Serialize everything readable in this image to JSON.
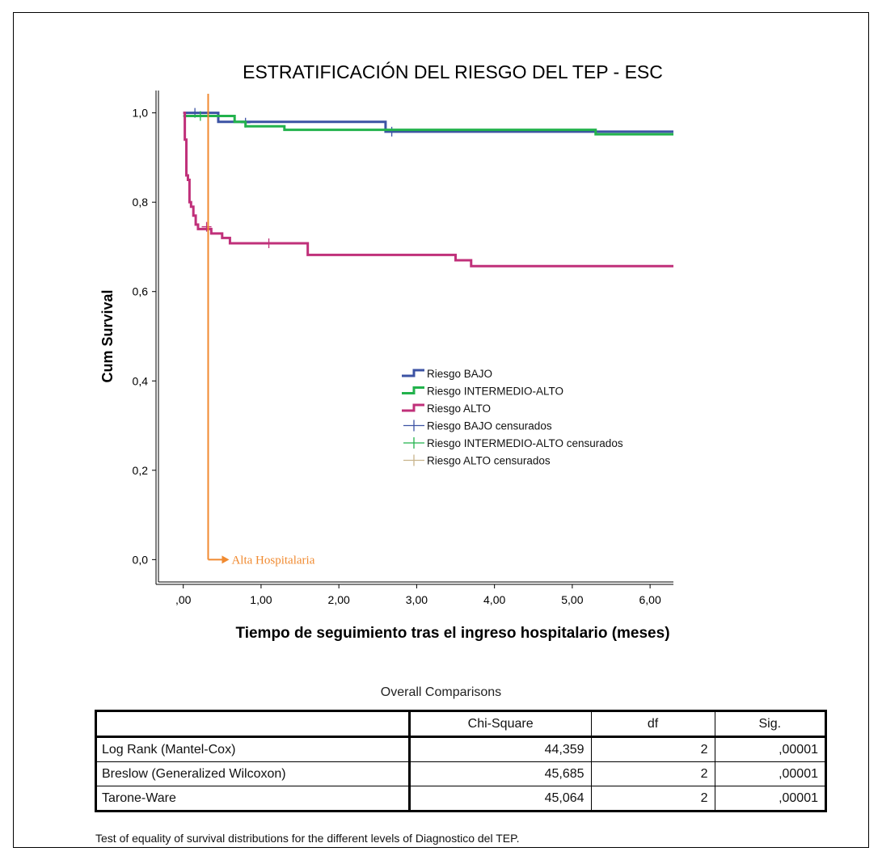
{
  "chart_data": {
    "type": "line",
    "title": "ESTRATIFICACIÓN DEL RIESGO DEL TEP - ESC",
    "xlabel": "Tiempo de seguimiento tras el ingreso hospitalario (meses)",
    "ylabel": "Cum Survival",
    "xlim": [
      -0.35,
      6.3
    ],
    "ylim": [
      -0.05,
      1.05
    ],
    "xticks": [
      0,
      1,
      2,
      3,
      4,
      5,
      6
    ],
    "xtick_labels": [
      ",00",
      "1,00",
      "2,00",
      "3,00",
      "4,00",
      "5,00",
      "6,00"
    ],
    "yticks": [
      0,
      0.2,
      0.4,
      0.6,
      0.8,
      1.0
    ],
    "ytick_labels": [
      "0,0",
      "0,2",
      "0,4",
      "0,6",
      "0,8",
      "1,0"
    ],
    "legend_position": "center-right",
    "series": [
      {
        "name": "Riesgo BAJO",
        "color": "#3C53A4",
        "steps": [
          [
            0,
            1.0
          ],
          [
            0.45,
            0.98
          ],
          [
            2.6,
            0.958
          ],
          [
            6.3,
            0.958
          ]
        ],
        "censored": [
          [
            0.15,
            1.0
          ],
          [
            0.8,
            0.978
          ],
          [
            2.68,
            0.958
          ]
        ]
      },
      {
        "name": "Riesgo INTERMEDIO-ALTO",
        "color": "#22B24C",
        "steps": [
          [
            0,
            0.993
          ],
          [
            0.66,
            0.98
          ],
          [
            0.8,
            0.97
          ],
          [
            1.3,
            0.962
          ],
          [
            5.3,
            0.952
          ],
          [
            6.3,
            0.952
          ]
        ],
        "censored": [
          [
            0.22,
            0.993
          ]
        ]
      },
      {
        "name": "Riesgo ALTO",
        "color": "#C0307A",
        "steps": [
          [
            0,
            1.0
          ],
          [
            0.02,
            0.94
          ],
          [
            0.04,
            0.86
          ],
          [
            0.06,
            0.85
          ],
          [
            0.08,
            0.8
          ],
          [
            0.1,
            0.79
          ],
          [
            0.13,
            0.77
          ],
          [
            0.16,
            0.75
          ],
          [
            0.19,
            0.74
          ],
          [
            0.36,
            0.73
          ],
          [
            0.5,
            0.72
          ],
          [
            0.6,
            0.708
          ],
          [
            1.0,
            0.708
          ],
          [
            1.6,
            0.682
          ],
          [
            3.5,
            0.67
          ],
          [
            3.7,
            0.657
          ],
          [
            6.3,
            0.657
          ]
        ],
        "censored": [
          [
            1.1,
            0.708
          ],
          [
            0.3,
            0.745
          ]
        ]
      }
    ],
    "censored_legend": [
      {
        "name": "Riesgo BAJO censurados",
        "color": "#3C53A4"
      },
      {
        "name": "Riesgo INTERMEDIO-ALTO censurados",
        "color": "#22B24C"
      },
      {
        "name": "Riesgo ALTO censurados",
        "color": "#C8B48C"
      }
    ],
    "annotation": {
      "label": "Alta Hospitalaria",
      "x": 0.32,
      "color": "#F08A30"
    }
  },
  "comparisons": {
    "title": "Overall Comparisons",
    "headers": [
      "",
      "Chi-Square",
      "df",
      "Sig."
    ],
    "rows": [
      {
        "label": "Log Rank (Mantel-Cox)",
        "chi": "44,359",
        "df": "2",
        "sig": ",00001"
      },
      {
        "label": "Breslow (Generalized Wilcoxon)",
        "chi": "45,685",
        "df": "2",
        "sig": ",00001"
      },
      {
        "label": "Tarone-Ware",
        "chi": "45,064",
        "df": "2",
        "sig": ",00001"
      }
    ],
    "footnote": "Test of equality of survival distributions for the different levels of Diagnostico del TEP."
  }
}
